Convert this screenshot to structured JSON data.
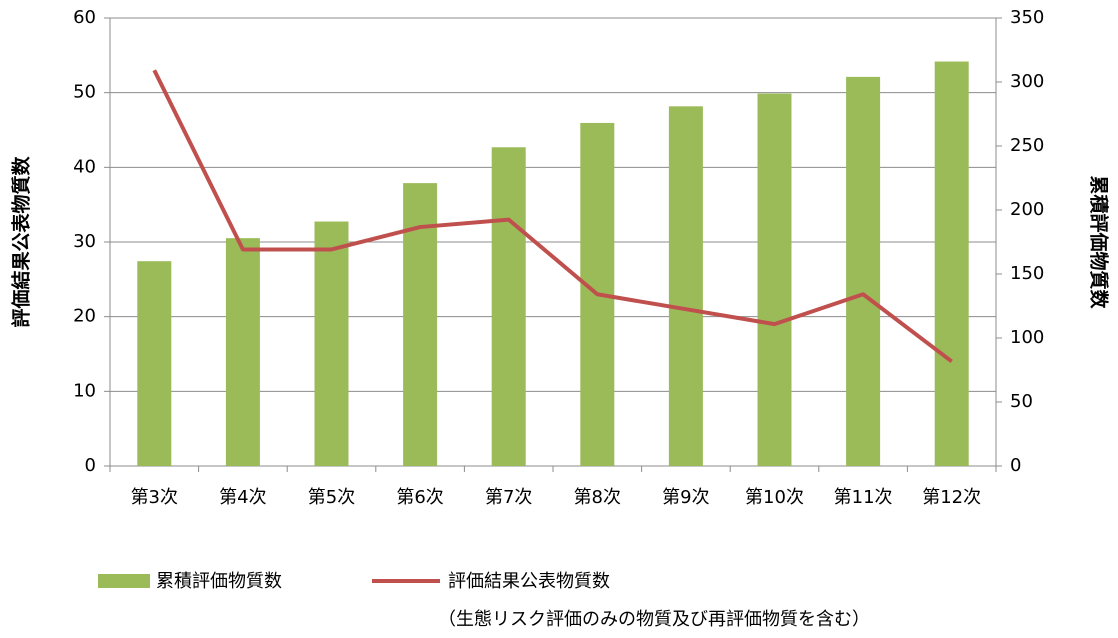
{
  "chart_data": {
    "type": "combo",
    "categories": [
      "第3次",
      "第4次",
      "第5次",
      "第6次",
      "第7次",
      "第8次",
      "第9次",
      "第10次",
      "第11次",
      "第12次"
    ],
    "series": [
      {
        "name": "累積評価物質数",
        "type": "bar",
        "axis": "y2",
        "color": "#9bbb59",
        "values": [
          160,
          178,
          191,
          221,
          249,
          268,
          281,
          291,
          304,
          316
        ]
      },
      {
        "name": "評価結果公表物質数",
        "type": "line",
        "axis": "y",
        "color": "#c0504d",
        "values": [
          53,
          29,
          29,
          32,
          33,
          23,
          21,
          19,
          23,
          14
        ],
        "legend_note": "（生態リスク評価のみの物質及び再評価物質を含む）"
      }
    ],
    "ylabel": "評価結果公表物質数",
    "y2label": "累積評価物質数",
    "ylim": [
      0,
      60
    ],
    "yticks": [
      0,
      10,
      20,
      30,
      40,
      50,
      60
    ],
    "y2lim": [
      0,
      350
    ],
    "y2ticks": [
      0,
      50,
      100,
      150,
      200,
      250,
      300,
      350
    ],
    "grid": true
  }
}
